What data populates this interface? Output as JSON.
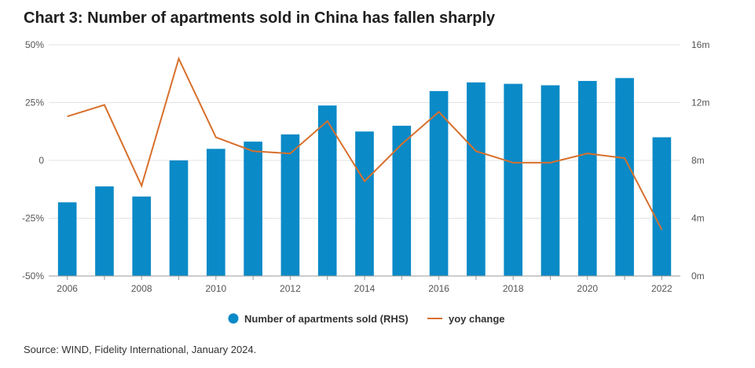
{
  "title": "Chart 3: Number of apartments sold in China has fallen sharply",
  "source": "Source: WIND, Fidelity International, January 2024.",
  "colors": {
    "bars": "#0a8ac7",
    "line": "#d8702c",
    "grid": "#e3e3e3",
    "axis": "#999999"
  },
  "chart_data": {
    "type": "bar",
    "title": "Chart 3: Number of apartments sold in China has fallen sharply",
    "x": [
      2006,
      2007,
      2008,
      2009,
      2010,
      2011,
      2012,
      2013,
      2014,
      2015,
      2016,
      2017,
      2018,
      2019,
      2020,
      2021,
      2022
    ],
    "x_ticks": [
      "2006",
      "2008",
      "2010",
      "2012",
      "2014",
      "2016",
      "2018",
      "2020",
      "2022"
    ],
    "y_left": {
      "ticks": [
        "50%",
        "25%",
        "0",
        "-25%",
        "-50%"
      ],
      "range": [
        -50,
        50
      ]
    },
    "y_right": {
      "ticks": [
        "16m",
        "12m",
        "8m",
        "4m",
        "0m"
      ],
      "range": [
        0,
        16
      ]
    },
    "grid": true,
    "legend_position": "bottom-center",
    "series": [
      {
        "name": "Number of apartments sold (RHS)",
        "type": "bar",
        "axis": "right",
        "values": [
          5.1,
          6.2,
          5.5,
          8.0,
          8.8,
          9.3,
          9.8,
          11.8,
          10.0,
          10.4,
          12.8,
          13.4,
          13.3,
          13.2,
          13.5,
          13.7,
          9.6
        ]
      },
      {
        "name": "yoy change",
        "type": "line",
        "axis": "left",
        "values": [
          19,
          24,
          -11,
          44,
          10,
          4,
          3,
          17,
          -9,
          7,
          21,
          4,
          -1,
          -1,
          3,
          1,
          -30
        ]
      }
    ]
  }
}
